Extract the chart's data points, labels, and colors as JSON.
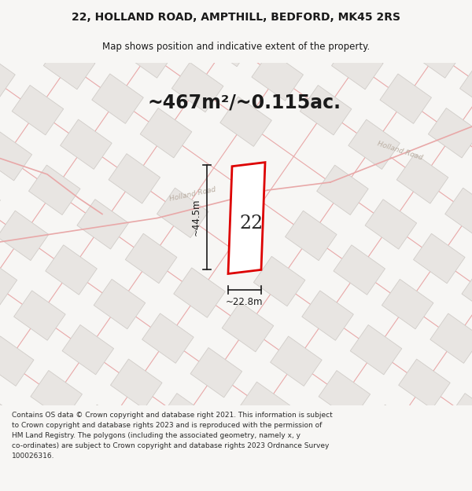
{
  "title_line1": "22, HOLLAND ROAD, AMPTHILL, BEDFORD, MK45 2RS",
  "title_line2": "Map shows position and indicative extent of the property.",
  "area_text": "~467m²/~0.115ac.",
  "label_number": "22",
  "label_width": "~22.8m",
  "label_height": "~44.5m",
  "footer_text": "Contains OS data © Crown copyright and database right 2021. This information is subject to Crown copyright and database rights 2023 and is reproduced with the permission of HM Land Registry. The polygons (including the associated geometry, namely x, y co-ordinates) are subject to Crown copyright and database rights 2023 Ordnance Survey 100026316.",
  "bg_color": "#f7f6f4",
  "map_bg": "#ffffff",
  "road_line_color": "#e8a8a8",
  "building_fill": "#e8e5e2",
  "building_edge": "#d0ccc8",
  "plot_outline_color": "#dd0000",
  "title_color": "#1a1a1a",
  "footer_color": "#2a2a2a",
  "road_label_color": "#b8aca0",
  "dim_color": "#1a1a1a",
  "area_text_color": "#1a1a1a"
}
